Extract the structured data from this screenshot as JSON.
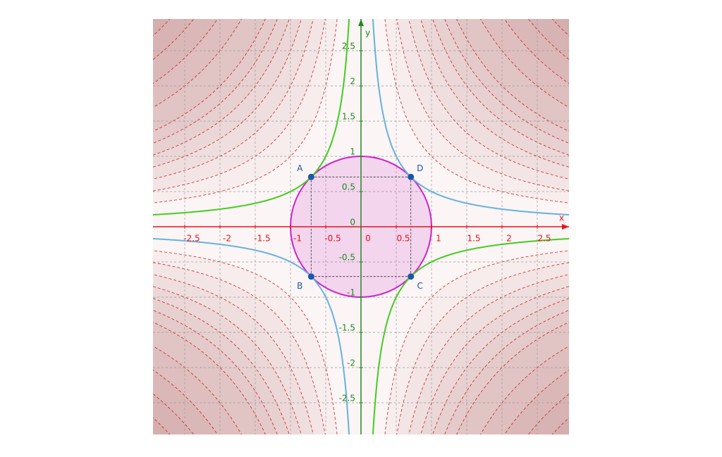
{
  "axes": {
    "x_label": "x",
    "y_label": "y",
    "xlim": [
      -2.95,
      2.95
    ],
    "ylim": [
      -2.95,
      2.95
    ],
    "xticks": [
      -2.5,
      -2,
      -1.5,
      -1,
      -0.5,
      0,
      0.5,
      1,
      1.5,
      2,
      2.5
    ],
    "yticks": [
      -2.5,
      -2,
      -1.5,
      -1,
      -0.5,
      0,
      0.5,
      1,
      1.5,
      2,
      2.5
    ],
    "x_color": "#e8111a",
    "y_color": "#1f8a1f",
    "grid": true
  },
  "contour_levels": [
    1,
    1.5,
    2,
    2.5,
    3,
    3.5,
    4,
    5,
    6,
    7,
    8
  ],
  "contour_color": "#cc2020",
  "circle": {
    "radius": 1,
    "color": "#cc22cc"
  },
  "curves": [
    {
      "k": 0.5,
      "color": "#66b2dd"
    },
    {
      "k": -0.5,
      "color": "#44cc22"
    }
  ],
  "points": [
    {
      "label": "A",
      "x": -0.707,
      "y": 0.707
    },
    {
      "label": "B",
      "x": -0.707,
      "y": -0.707
    },
    {
      "label": "C",
      "x": 0.707,
      "y": -0.707
    },
    {
      "label": "D",
      "x": 0.707,
      "y": 0.707
    }
  ],
  "point_color": "#1a56a8"
}
